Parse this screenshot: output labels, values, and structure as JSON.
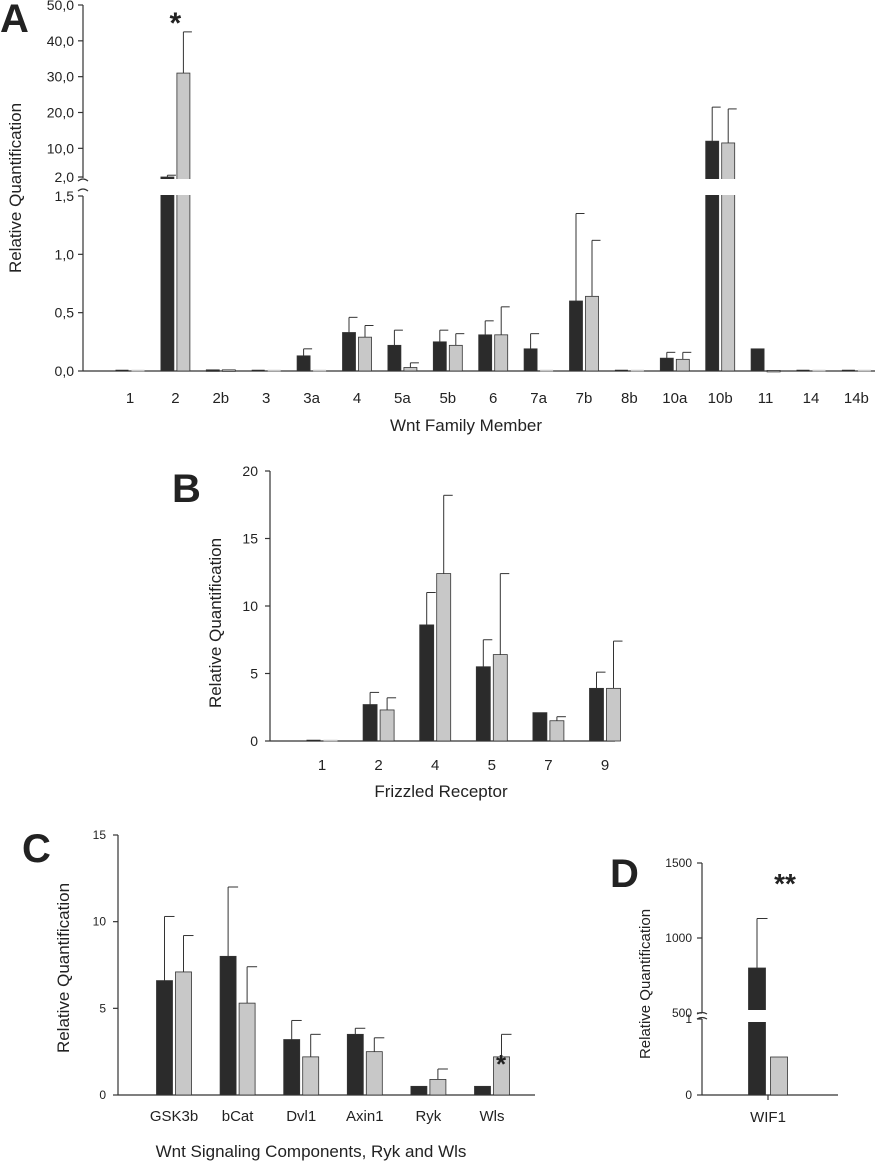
{
  "chart_data": [
    {
      "panel": "A",
      "type": "bar",
      "xlabel": "Wnt Family Member",
      "ylabel": "Relative Quantification",
      "categories": [
        "1",
        "2",
        "2b",
        "3",
        "3a",
        "4",
        "5a",
        "5b",
        "6",
        "7a",
        "7b",
        "8b",
        "10a",
        "10b",
        "11",
        "14",
        "14b"
      ],
      "axis_break": true,
      "lower_ylim": [
        0,
        1.5
      ],
      "upper_ylim": [
        2,
        50
      ],
      "lower_ticks": [
        "0,0",
        "0,5",
        "1,0",
        "1,5"
      ],
      "upper_ticks": [
        "2,0",
        "10,0",
        "20,0",
        "30,0",
        "40,0",
        "50,0"
      ],
      "series": [
        {
          "color": "#2b2b2b",
          "values": [
            0,
            2,
            0.01,
            0,
            0.13,
            0.33,
            0.22,
            0.25,
            0.31,
            0.19,
            0.6,
            0,
            0.11,
            12,
            0.19,
            0,
            0
          ],
          "errors": [
            0,
            0.5,
            0,
            0,
            0.06,
            0.13,
            0.13,
            0.1,
            0.12,
            0.13,
            0.75,
            0,
            0.05,
            9.5,
            0,
            0,
            0
          ]
        },
        {
          "color": "#c8c8c8",
          "values": [
            0,
            31,
            0.01,
            0,
            0,
            0.29,
            0.03,
            0.22,
            0.31,
            0,
            0.64,
            0,
            0.1,
            11.5,
            0.005,
            0,
            0
          ],
          "errors": [
            0,
            11.5,
            0,
            0,
            0,
            0.1,
            0.04,
            0.1,
            0.24,
            0,
            0.48,
            0,
            0.06,
            9.5,
            0,
            0,
            0
          ]
        }
      ],
      "annotations": [
        {
          "category": "2",
          "text": "*"
        }
      ],
      "grid": false
    },
    {
      "panel": "B",
      "type": "bar",
      "xlabel": "Frizzled Receptor",
      "ylabel": "Relative Quantification",
      "categories": [
        "1",
        "2",
        "4",
        "5",
        "7",
        "9"
      ],
      "ylim": [
        0,
        20
      ],
      "yticks": [
        "0",
        "5",
        "10",
        "15",
        "20"
      ],
      "series": [
        {
          "color": "#2b2b2b",
          "values": [
            0,
            2.7,
            8.6,
            5.5,
            2.1,
            3.9
          ],
          "errors": [
            0,
            0.9,
            2.4,
            2.0,
            0,
            1.2
          ]
        },
        {
          "color": "#c8c8c8",
          "values": [
            0,
            2.3,
            12.4,
            6.4,
            1.5,
            3.9
          ],
          "errors": [
            0,
            0.9,
            5.8,
            6.0,
            0.3,
            3.5
          ]
        }
      ],
      "grid": false
    },
    {
      "panel": "C",
      "type": "bar",
      "xlabel": "Wnt Signaling Components, Ryk and Wls",
      "ylabel": "Relative Quantification",
      "categories": [
        "GSK3b",
        "bCat",
        "Dvl1",
        "Axin1",
        "Ryk",
        "Wls"
      ],
      "ylim": [
        0,
        15
      ],
      "yticks": [
        "0",
        "5",
        "10",
        "15"
      ],
      "series": [
        {
          "color": "#2b2b2b",
          "values": [
            6.6,
            8.0,
            3.2,
            3.5,
            0.5,
            0.5
          ],
          "errors": [
            3.7,
            4.0,
            1.1,
            0.35,
            0,
            0
          ]
        },
        {
          "color": "#c8c8c8",
          "values": [
            7.1,
            5.3,
            2.2,
            2.5,
            0.9,
            2.2
          ],
          "errors": [
            2.1,
            2.1,
            1.3,
            0.8,
            0.6,
            1.3
          ]
        }
      ],
      "annotations": [
        {
          "category": "Wls",
          "text": "*"
        }
      ],
      "grid": false
    },
    {
      "panel": "D",
      "type": "bar",
      "xlabel": "",
      "ylabel": "Relative Quantification",
      "categories": [
        "WIF1"
      ],
      "axis_break": true,
      "lower_ylim": [
        0,
        1
      ],
      "upper_ylim": [
        500,
        1500
      ],
      "lower_ticks": [
        "0",
        "1"
      ],
      "upper_ticks": [
        "500",
        "1000",
        "1500"
      ],
      "series": [
        {
          "color": "#2b2b2b",
          "values": [
            800
          ],
          "errors": [
            330
          ]
        },
        {
          "color": "#c8c8c8",
          "values": [
            0.5
          ],
          "errors": [
            0
          ]
        }
      ],
      "annotations": [
        {
          "category": "WIF1",
          "text": "**"
        }
      ],
      "grid": false
    }
  ]
}
